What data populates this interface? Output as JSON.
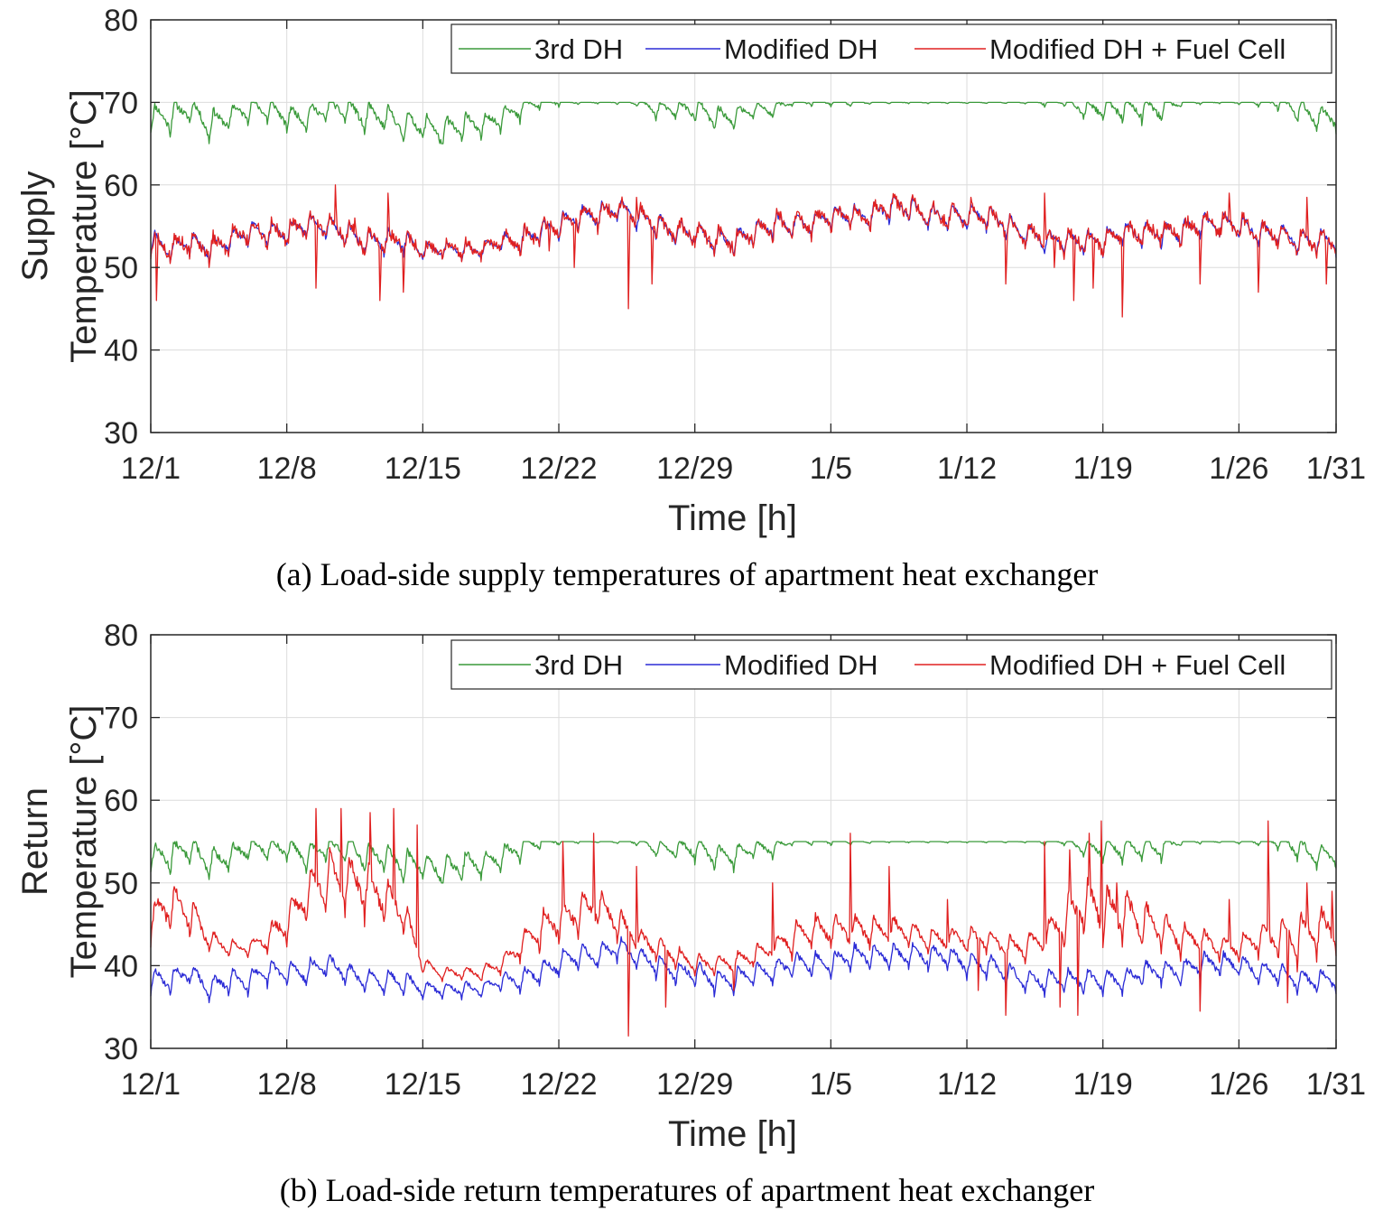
{
  "chart_data": [
    {
      "type": "line",
      "panel": "a",
      "caption": "(a) Load-side supply temperatures of apartment heat exchanger",
      "ylabel_line1": "Supply",
      "ylabel_line2": "Temperature [°C]",
      "xlabel": "Time [h]",
      "ylim": [
        30,
        80
      ],
      "yticks": [
        "30",
        "40",
        "50",
        "60",
        "70",
        "80"
      ],
      "xlim": [
        0,
        61
      ],
      "xticks": [
        {
          "day": 0,
          "label": "12/1"
        },
        {
          "day": 7,
          "label": "12/8"
        },
        {
          "day": 14,
          "label": "12/15"
        },
        {
          "day": 21,
          "label": "12/22"
        },
        {
          "day": 28,
          "label": "12/29"
        },
        {
          "day": 35,
          "label": "1/5"
        },
        {
          "day": 42,
          "label": "1/12"
        },
        {
          "day": 49,
          "label": "1/19"
        },
        {
          "day": 56,
          "label": "1/26"
        },
        {
          "day": 61,
          "label": "1/31"
        }
      ],
      "grid": true,
      "legend": "top-right",
      "series": [
        {
          "name": "3rd DH",
          "color": "#3a9a3a",
          "base": [
            68,
            68,
            69,
            67,
            68,
            69,
            69,
            68,
            68,
            69,
            69,
            68,
            68,
            67,
            67,
            66,
            67,
            67,
            68,
            69,
            70,
            70,
            70,
            70,
            70,
            70,
            69,
            69,
            69,
            68,
            68,
            69,
            69,
            70,
            70,
            70,
            70,
            70,
            70,
            70,
            70,
            70,
            70,
            70,
            70,
            70,
            70,
            70,
            69,
            69,
            69,
            69,
            69,
            70,
            70,
            70,
            70,
            70,
            70,
            69,
            68
          ],
          "amp": [
            3,
            4,
            3,
            4,
            3,
            3,
            3,
            3,
            3,
            3,
            3,
            4,
            3,
            4,
            3,
            4,
            4,
            3,
            3,
            3,
            2,
            1,
            0.5,
            0.3,
            0.5,
            1,
            2,
            2,
            3,
            3,
            3,
            2,
            2,
            1,
            1,
            1,
            1,
            0.5,
            0.3,
            0.3,
            0.3,
            0.3,
            0.3,
            0.3,
            0.3,
            0.3,
            1,
            1,
            2,
            3,
            3,
            3,
            3,
            1,
            0.5,
            0.3,
            0.5,
            1,
            2,
            3,
            3
          ],
          "min": 65,
          "max": 70,
          "seed": 11
        },
        {
          "name": "Modified DH",
          "color": "#2b2bd6",
          "base": [
            53,
            52,
            53,
            52,
            53,
            54,
            54,
            54,
            55,
            55,
            54,
            53,
            53,
            53,
            52,
            52,
            52,
            52,
            53,
            53,
            54,
            55,
            56,
            56,
            57,
            56,
            55,
            54,
            54,
            53,
            53,
            54,
            55,
            55,
            55,
            56,
            56,
            56,
            57,
            57,
            56,
            56,
            56,
            56,
            55,
            54,
            53,
            53,
            53,
            53,
            54,
            54,
            54,
            54,
            55,
            55,
            55,
            54,
            54,
            53,
            53
          ],
          "amp": [
            3,
            3,
            3,
            3,
            3,
            3,
            3,
            3,
            3,
            3,
            3,
            3,
            3,
            3,
            2,
            2,
            2,
            2,
            2,
            3,
            3,
            3,
            3,
            3,
            3,
            3,
            3,
            3,
            3,
            3,
            3,
            3,
            3,
            3,
            3,
            3,
            3,
            3,
            3,
            3,
            3,
            3,
            3,
            3,
            3,
            3,
            3,
            3,
            3,
            3,
            3,
            3,
            3,
            3,
            3,
            3,
            3,
            3,
            3,
            3,
            3
          ],
          "min": 47,
          "max": 59,
          "seed": 23
        },
        {
          "name": "Modified DH + Fuel Cell",
          "color": "#e02020",
          "min": 44,
          "max": 60,
          "seed": 37,
          "spikes": [
            [
              0.3,
              46
            ],
            [
              3,
              50
            ],
            [
              8.5,
              47.5
            ],
            [
              9.5,
              60
            ],
            [
              10.5,
              56
            ],
            [
              11.8,
              46
            ],
            [
              12.2,
              59
            ],
            [
              13,
              47
            ],
            [
              20.5,
              52
            ],
            [
              21.8,
              50
            ],
            [
              24.6,
              45
            ],
            [
              25,
              58.5
            ],
            [
              25.8,
              48
            ],
            [
              32,
              53
            ],
            [
              38,
              56
            ],
            [
              42.2,
              58.5
            ],
            [
              44,
              48
            ],
            [
              46,
              59
            ],
            [
              46.5,
              50
            ],
            [
              47.5,
              46
            ],
            [
              48.5,
              47.5
            ],
            [
              50,
              44
            ],
            [
              52,
              54
            ],
            [
              54,
              48
            ],
            [
              55.5,
              59
            ],
            [
              57,
              47
            ],
            [
              59.5,
              58.5
            ],
            [
              60.5,
              48
            ]
          ]
        }
      ]
    },
    {
      "type": "line",
      "panel": "b",
      "caption": "(b) Load-side return temperatures of apartment heat exchanger",
      "ylabel_line1": "Return",
      "ylabel_line2": "Temperature [°C]",
      "xlabel": "Time [h]",
      "ylim": [
        30,
        80
      ],
      "yticks": [
        "30",
        "40",
        "50",
        "60",
        "70",
        "80"
      ],
      "xlim": [
        0,
        61
      ],
      "xticks": [
        {
          "day": 0,
          "label": "12/1"
        },
        {
          "day": 7,
          "label": "12/8"
        },
        {
          "day": 14,
          "label": "12/15"
        },
        {
          "day": 21,
          "label": "12/22"
        },
        {
          "day": 28,
          "label": "12/29"
        },
        {
          "day": 35,
          "label": "1/5"
        },
        {
          "day": 42,
          "label": "1/12"
        },
        {
          "day": 49,
          "label": "1/19"
        },
        {
          "day": 56,
          "label": "1/26"
        },
        {
          "day": 61,
          "label": "1/31"
        }
      ],
      "grid": true,
      "legend": "top-right",
      "series": [
        {
          "name": "3rd DH",
          "color": "#3a9a3a",
          "base": [
            53,
            53,
            54,
            52,
            53,
            54,
            54,
            54,
            53,
            54,
            54,
            53,
            53,
            52,
            52,
            51,
            52,
            52,
            53,
            54,
            55,
            55,
            55,
            55,
            55,
            55,
            54,
            54,
            54,
            53,
            53,
            54,
            54,
            55,
            55,
            55,
            55,
            55,
            55,
            55,
            55,
            55,
            55,
            55,
            55,
            55,
            55,
            55,
            54,
            54,
            54,
            54,
            54,
            55,
            55,
            55,
            55,
            55,
            55,
            54,
            53
          ],
          "amp": [
            3,
            4,
            3,
            4,
            3,
            3,
            3,
            3,
            3,
            3,
            3,
            4,
            3,
            4,
            3,
            4,
            4,
            3,
            3,
            3,
            2,
            1,
            0.5,
            0.3,
            0.5,
            1,
            2,
            2,
            3,
            3,
            3,
            2,
            2,
            1,
            1,
            1,
            1,
            0.5,
            0.3,
            0.3,
            0.3,
            0.3,
            0.3,
            0.3,
            0.3,
            0.3,
            1,
            1,
            2,
            3,
            3,
            3,
            3,
            1,
            0.5,
            0.3,
            0.5,
            1,
            2,
            3,
            3
          ],
          "min": 50,
          "max": 55,
          "seed": 13
        },
        {
          "name": "Modified DH",
          "color": "#2b2bd6",
          "base": [
            38,
            38,
            39,
            37,
            38,
            38,
            39,
            39,
            39,
            40,
            39,
            38,
            38,
            38,
            37,
            37,
            37,
            37,
            38,
            38,
            39,
            40,
            41,
            41,
            42,
            41,
            40,
            39,
            39,
            38,
            38,
            39,
            39,
            40,
            40,
            40,
            41,
            41,
            41,
            41,
            41,
            41,
            40,
            40,
            39,
            38,
            38,
            38,
            38,
            38,
            38,
            39,
            39,
            39,
            40,
            40,
            40,
            39,
            39,
            38,
            38
          ],
          "amp": [
            3,
            3,
            3,
            3,
            3,
            3,
            3,
            3,
            3,
            3,
            3,
            3,
            3,
            3,
            2,
            2,
            2,
            2,
            2,
            3,
            3,
            3,
            3,
            3,
            3,
            3,
            3,
            3,
            3,
            3,
            3,
            3,
            3,
            3,
            3,
            3,
            3,
            3,
            3,
            3,
            3,
            3,
            3,
            3,
            3,
            3,
            3,
            3,
            3,
            3,
            3,
            3,
            3,
            3,
            3,
            3,
            3,
            3,
            3,
            3,
            3
          ],
          "min": 33,
          "max": 44,
          "seed": 29
        },
        {
          "name": "Modified DH + Fuel Cell",
          "color": "#e02020",
          "base": [
            45,
            47,
            46,
            43,
            42,
            42,
            43,
            45,
            48,
            50,
            50,
            49,
            48,
            46,
            40,
            39,
            39,
            39,
            40,
            42,
            44,
            45,
            46,
            47,
            45,
            43,
            42,
            41,
            40,
            40,
            40,
            41,
            42,
            43,
            44,
            44,
            44,
            44,
            44,
            44,
            43,
            43,
            43,
            43,
            42,
            42,
            43,
            45,
            47,
            46,
            46,
            45,
            44,
            43,
            43,
            42,
            42,
            43,
            43,
            43,
            44
          ],
          "amp": [
            5,
            6,
            5,
            3,
            2,
            2,
            3,
            5,
            6,
            7,
            7,
            7,
            6,
            5,
            2,
            1.5,
            1.5,
            2,
            2,
            3,
            5,
            5,
            5,
            5,
            4,
            3,
            3,
            2.5,
            2.5,
            2.5,
            3,
            3,
            3,
            4,
            4,
            4,
            4,
            4,
            4,
            3,
            3,
            3,
            3,
            3,
            3,
            3,
            4,
            6,
            7,
            7,
            7,
            6,
            5,
            4,
            3,
            3,
            3,
            4,
            5,
            6,
            6
          ],
          "min": 31,
          "max": 59,
          "seed": 41,
          "spikes": [
            [
              8.5,
              59
            ],
            [
              9.8,
              59
            ],
            [
              11.3,
              58.5
            ],
            [
              12.5,
              59
            ],
            [
              13.7,
              57
            ],
            [
              21.2,
              55
            ],
            [
              22.8,
              56
            ],
            [
              24.6,
              31.5
            ],
            [
              25,
              52
            ],
            [
              26.5,
              35
            ],
            [
              30,
              37
            ],
            [
              32,
              50
            ],
            [
              36,
              56
            ],
            [
              38,
              52
            ],
            [
              41,
              48
            ],
            [
              42.6,
              37
            ],
            [
              44,
              34
            ],
            [
              46,
              55
            ],
            [
              46.8,
              35
            ],
            [
              47.3,
              54
            ],
            [
              47.7,
              34
            ],
            [
              48.3,
              56
            ],
            [
              48.9,
              57.5
            ],
            [
              49.7,
              50
            ],
            [
              51.5,
              46
            ],
            [
              54,
              34.5
            ],
            [
              55.5,
              48
            ],
            [
              57.5,
              57.5
            ],
            [
              58.5,
              35.5
            ],
            [
              59.5,
              50
            ],
            [
              60.8,
              49
            ]
          ]
        }
      ]
    }
  ]
}
